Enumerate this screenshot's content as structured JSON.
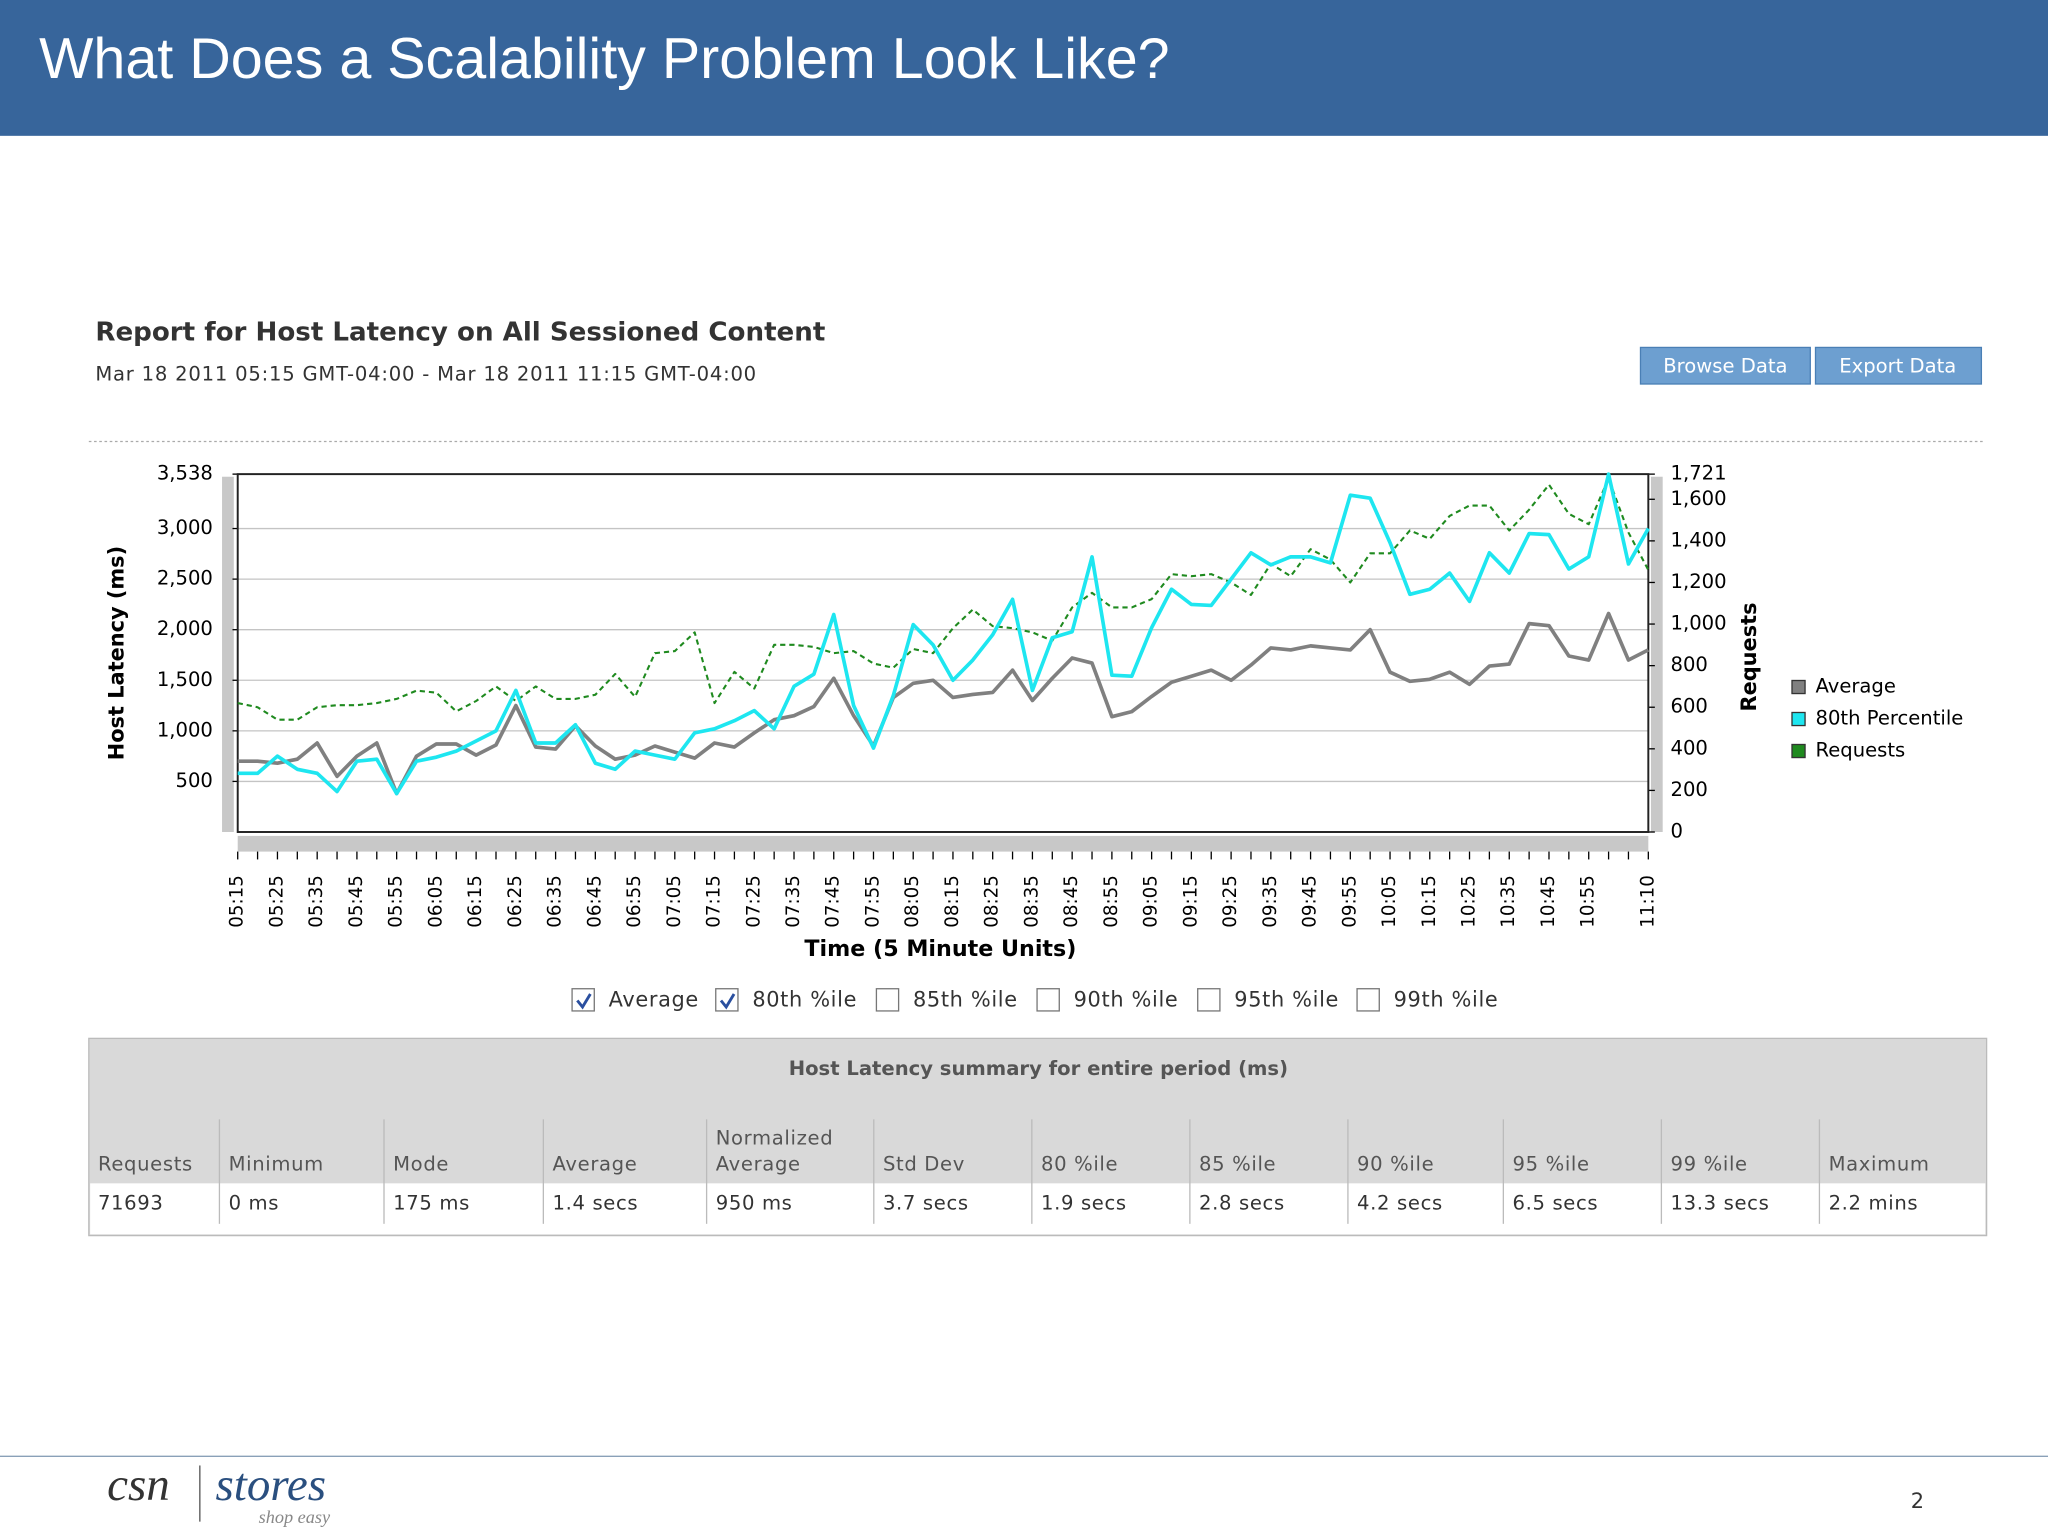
{
  "slide": {
    "title": "What Does a Scalability Problem Look Like?"
  },
  "report": {
    "title": "Report for Host Latency on All Sessioned Content",
    "subtitle": "Mar 18 2011 05:15 GMT-04:00 - Mar 18 2011 11:15 GMT-04:00",
    "buttons": [
      "Browse Data",
      "Export Data"
    ]
  },
  "chart_data": {
    "type": "line",
    "xlabel": "Time (5 Minute Units)",
    "ylabel": "Host Latency (ms)",
    "y2label": "Requests",
    "categories": [
      "05:15",
      null,
      "05:25",
      null,
      "05:35",
      null,
      "05:45",
      null,
      "05:55",
      null,
      "06:05",
      null,
      "06:15",
      null,
      "06:25",
      null,
      "06:35",
      null,
      "06:45",
      null,
      "06:55",
      null,
      "07:05",
      null,
      "07:15",
      null,
      "07:25",
      null,
      "07:35",
      null,
      "07:45",
      null,
      "07:55",
      null,
      "08:05",
      null,
      "08:15",
      null,
      "08:25",
      null,
      "08:35",
      null,
      "08:45",
      null,
      "08:55",
      null,
      "09:05",
      null,
      "09:15",
      null,
      "09:25",
      null,
      "09:35",
      null,
      "09:45",
      null,
      "09:55",
      null,
      "10:05",
      null,
      "10:15",
      null,
      "10:25",
      null,
      "10:35",
      null,
      "10:45",
      null,
      "10:55",
      null,
      null,
      "11:10"
    ],
    "series": [
      {
        "name": "Average",
        "color": "#808080",
        "values": [
          700,
          700,
          680,
          720,
          880,
          550,
          750,
          880,
          380,
          750,
          870,
          870,
          760,
          860,
          1250,
          840,
          820,
          1050,
          850,
          720,
          760,
          850,
          790,
          730,
          880,
          840,
          980,
          1110,
          1150,
          1240,
          1520,
          1150,
          850,
          1330,
          1470,
          1500,
          1330,
          1360,
          1380,
          1600,
          1300,
          1520,
          1720,
          1670,
          1140,
          1190,
          1340,
          1480,
          1540,
          1600,
          1500,
          1650,
          1820,
          1800,
          1840,
          1820,
          1800,
          2000,
          1580,
          1490,
          1510,
          1580,
          1460,
          1640,
          1660,
          2060,
          2040,
          1740,
          1700,
          2160,
          1700,
          1800
        ]
      },
      {
        "name": "80th Percentile",
        "color": "#1ee6f0",
        "values": [
          580,
          580,
          750,
          620,
          580,
          400,
          700,
          720,
          380,
          700,
          740,
          800,
          900,
          1000,
          1400,
          880,
          880,
          1060,
          680,
          620,
          800,
          760,
          720,
          980,
          1020,
          1100,
          1200,
          1020,
          1440,
          1560,
          2150,
          1250,
          830,
          1350,
          2050,
          1850,
          1500,
          1700,
          1950,
          2300,
          1400,
          1920,
          1980,
          2720,
          1550,
          1540,
          2020,
          2400,
          2250,
          2240,
          2500,
          2760,
          2640,
          2720,
          2720,
          2660,
          3330,
          3300,
          2860,
          2350,
          2400,
          2560,
          2280,
          2760,
          2560,
          2950,
          2940,
          2600,
          2720,
          3538,
          2650,
          3000
        ]
      },
      {
        "name": "Requests",
        "color": "#1f8a1f",
        "axis": "y2",
        "dashed": true,
        "values": [
          620,
          600,
          540,
          540,
          600,
          610,
          610,
          620,
          640,
          680,
          670,
          580,
          630,
          700,
          630,
          700,
          640,
          640,
          660,
          760,
          650,
          860,
          870,
          960,
          620,
          770,
          690,
          900,
          900,
          890,
          860,
          870,
          810,
          790,
          880,
          860,
          980,
          1070,
          990,
          980,
          960,
          920,
          1080,
          1150,
          1080,
          1080,
          1120,
          1240,
          1230,
          1240,
          1200,
          1140,
          1290,
          1230,
          1360,
          1310,
          1200,
          1340,
          1340,
          1450,
          1410,
          1520,
          1570,
          1570,
          1450,
          1550,
          1670,
          1530,
          1480,
          1700,
          1440,
          1260
        ]
      }
    ],
    "ylim": [
      0,
      3538
    ],
    "yticks": [
      500,
      {
        "value": 1000,
        "label": "1,000"
      },
      {
        "value": 1500,
        "label": "1,500"
      },
      {
        "value": 2000,
        "label": "2,000"
      },
      {
        "value": 2500,
        "label": "2,500"
      },
      {
        "value": 3000,
        "label": "3,000"
      },
      {
        "value": 3538,
        "label": "3,538"
      }
    ],
    "y2lim": [
      0,
      1721
    ],
    "y2ticks": [
      0,
      200,
      400,
      600,
      800,
      {
        "value": 1000,
        "label": "1,000"
      },
      {
        "value": 1200,
        "label": "1,200"
      },
      {
        "value": 1400,
        "label": "1,400"
      },
      {
        "value": 1600,
        "label": "1,600"
      },
      {
        "value": 1721,
        "label": "1,721"
      }
    ],
    "grid": true,
    "legend": "right"
  },
  "filters": [
    {
      "label": "Average",
      "checked": true
    },
    {
      "label": "80th %ile",
      "checked": true
    },
    {
      "label": "85th %ile",
      "checked": false
    },
    {
      "label": "90th %ile",
      "checked": false
    },
    {
      "label": "95th %ile",
      "checked": false
    },
    {
      "label": "99th %ile",
      "checked": false
    }
  ],
  "table": {
    "title": "Host Latency summary for entire period (ms)",
    "headers": [
      [
        "Requests"
      ],
      [
        "Minimum"
      ],
      [
        "Mode"
      ],
      [
        "Average"
      ],
      [
        "Normalized",
        "Average"
      ],
      [
        "Std Dev"
      ],
      [
        "80 %ile"
      ],
      [
        "85 %ile"
      ],
      [
        "90 %ile"
      ],
      [
        "95 %ile"
      ],
      [
        "99 %ile"
      ],
      [
        "Maximum"
      ]
    ],
    "rows": [
      [
        "71693",
        "0 ms",
        "175 ms",
        "1.4 secs",
        "950 ms",
        "3.7 secs",
        "1.9 secs",
        "2.8 secs",
        "4.2 secs",
        "6.5 secs",
        "13.3 secs",
        "2.2 mins"
      ]
    ]
  },
  "footer": {
    "logo": "csn",
    "logo2": "stores",
    "tagline": "shop easy",
    "page": "2"
  }
}
